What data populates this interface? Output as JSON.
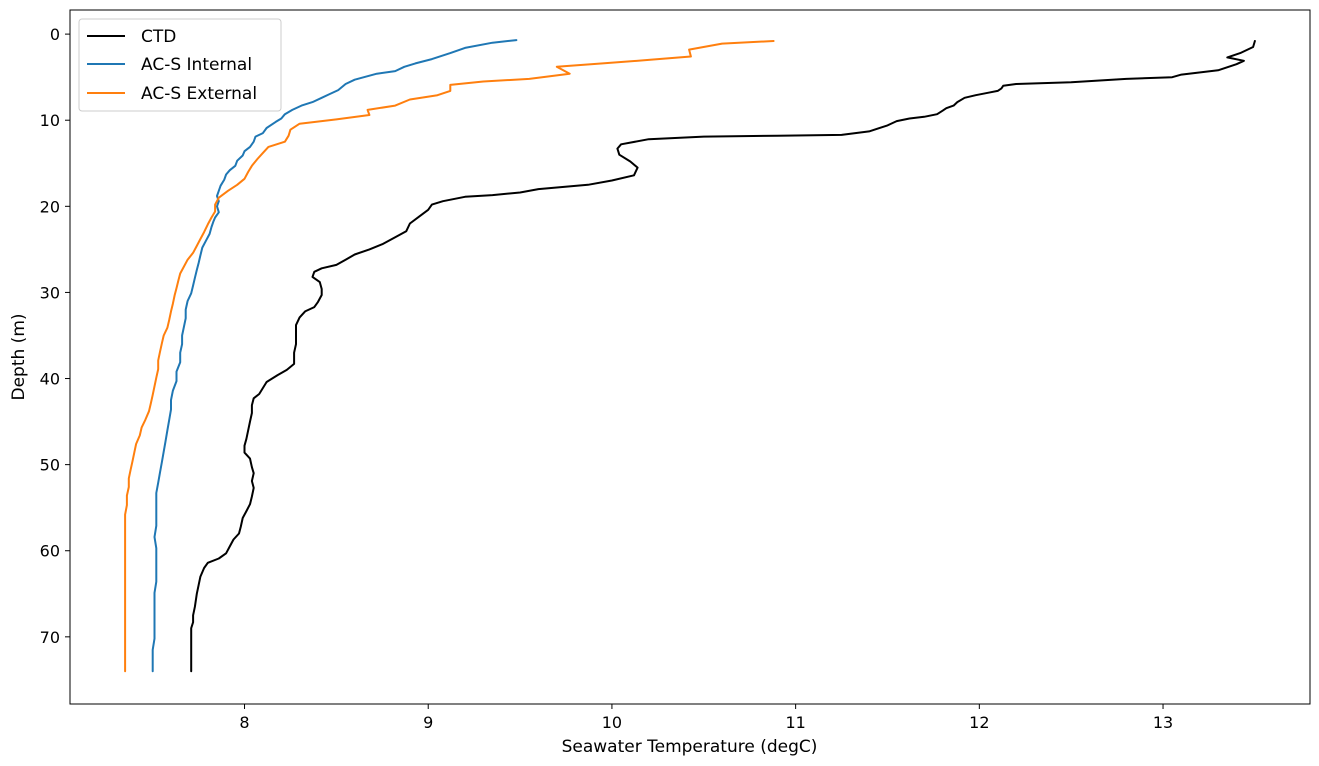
{
  "chart_data": {
    "type": "line",
    "xlabel": "Seawater Temperature (degC)",
    "ylabel": "Depth (m)",
    "xlim": [
      7.05,
      13.8
    ],
    "ylim": [
      77.8,
      -2.8
    ],
    "y_inverted": true,
    "xticks": [
      8,
      9,
      10,
      11,
      12,
      13
    ],
    "yticks": [
      0,
      10,
      20,
      30,
      40,
      50,
      60,
      70
    ],
    "grid": false,
    "legend_position": "top-left",
    "series": [
      {
        "name": "CTD",
        "color": "#000000",
        "points": [
          [
            13.5,
            0.8
          ],
          [
            13.49,
            1.5
          ],
          [
            13.42,
            2.2
          ],
          [
            13.35,
            2.7
          ],
          [
            13.44,
            3.1
          ],
          [
            13.4,
            3.5
          ],
          [
            13.3,
            4.2
          ],
          [
            13.1,
            4.7
          ],
          [
            13.05,
            5.0
          ],
          [
            12.8,
            5.2
          ],
          [
            12.5,
            5.6
          ],
          [
            12.2,
            5.8
          ],
          [
            12.13,
            6.0
          ],
          [
            12.12,
            6.3
          ],
          [
            12.1,
            6.6
          ],
          [
            12.05,
            6.8
          ],
          [
            11.98,
            7.1
          ],
          [
            11.92,
            7.4
          ],
          [
            11.88,
            7.9
          ],
          [
            11.86,
            8.3
          ],
          [
            11.82,
            8.6
          ],
          [
            11.8,
            8.9
          ],
          [
            11.77,
            9.3
          ],
          [
            11.7,
            9.6
          ],
          [
            11.62,
            9.8
          ],
          [
            11.55,
            10.1
          ],
          [
            11.5,
            10.6
          ],
          [
            11.4,
            11.3
          ],
          [
            11.25,
            11.7
          ],
          [
            10.9,
            11.8
          ],
          [
            10.5,
            11.9
          ],
          [
            10.2,
            12.2
          ],
          [
            10.05,
            12.8
          ],
          [
            10.03,
            13.3
          ],
          [
            10.04,
            14.0
          ],
          [
            10.1,
            14.8
          ],
          [
            10.14,
            15.5
          ],
          [
            10.12,
            16.4
          ],
          [
            10.0,
            17.0
          ],
          [
            9.87,
            17.5
          ],
          [
            9.6,
            18.0
          ],
          [
            9.5,
            18.4
          ],
          [
            9.35,
            18.7
          ],
          [
            9.2,
            18.9
          ],
          [
            9.08,
            19.4
          ],
          [
            9.02,
            19.8
          ],
          [
            9.0,
            20.4
          ],
          [
            8.95,
            21.2
          ],
          [
            8.9,
            22.0
          ],
          [
            8.88,
            22.9
          ],
          [
            8.82,
            23.6
          ],
          [
            8.75,
            24.4
          ],
          [
            8.68,
            25.0
          ],
          [
            8.6,
            25.6
          ],
          [
            8.55,
            26.2
          ],
          [
            8.5,
            26.8
          ],
          [
            8.42,
            27.2
          ],
          [
            8.38,
            27.6
          ],
          [
            8.37,
            28.2
          ],
          [
            8.41,
            28.8
          ],
          [
            8.42,
            29.6
          ],
          [
            8.42,
            30.3
          ],
          [
            8.4,
            31.1
          ],
          [
            8.38,
            31.7
          ],
          [
            8.33,
            32.2
          ],
          [
            8.3,
            32.9
          ],
          [
            8.28,
            33.8
          ],
          [
            8.28,
            35.0
          ],
          [
            8.28,
            36.0
          ],
          [
            8.27,
            37.0
          ],
          [
            8.27,
            38.3
          ],
          [
            8.23,
            39.0
          ],
          [
            8.18,
            39.6
          ],
          [
            8.12,
            40.4
          ],
          [
            8.1,
            41.1
          ],
          [
            8.08,
            41.8
          ],
          [
            8.05,
            42.3
          ],
          [
            8.04,
            43.1
          ],
          [
            8.04,
            44.0
          ],
          [
            8.03,
            45.0
          ],
          [
            8.02,
            46.0
          ],
          [
            8.01,
            47.0
          ],
          [
            8.0,
            47.8
          ],
          [
            8.0,
            48.6
          ],
          [
            8.03,
            49.3
          ],
          [
            8.04,
            50.3
          ],
          [
            8.05,
            51.0
          ],
          [
            8.04,
            51.9
          ],
          [
            8.05,
            52.7
          ],
          [
            8.04,
            53.7
          ],
          [
            8.03,
            54.6
          ],
          [
            8.01,
            55.4
          ],
          [
            7.99,
            56.2
          ],
          [
            7.98,
            57.2
          ],
          [
            7.97,
            58.0
          ],
          [
            7.94,
            58.7
          ],
          [
            7.92,
            59.5
          ],
          [
            7.9,
            60.3
          ],
          [
            7.86,
            60.9
          ],
          [
            7.8,
            61.4
          ],
          [
            7.78,
            62.0
          ],
          [
            7.76,
            63.0
          ],
          [
            7.75,
            64.0
          ],
          [
            7.74,
            65.0
          ],
          [
            7.73,
            66.5
          ],
          [
            7.72,
            67.5
          ],
          [
            7.72,
            68.3
          ],
          [
            7.71,
            69.0
          ],
          [
            7.71,
            70.0
          ],
          [
            7.71,
            72.0
          ],
          [
            7.71,
            74.0
          ]
        ]
      },
      {
        "name": "AC-S Internal",
        "color": "#1f77b4",
        "points": [
          [
            9.48,
            0.7
          ],
          [
            9.35,
            1.0
          ],
          [
            9.2,
            1.6
          ],
          [
            9.12,
            2.2
          ],
          [
            9.02,
            2.9
          ],
          [
            8.93,
            3.4
          ],
          [
            8.87,
            3.8
          ],
          [
            8.82,
            4.3
          ],
          [
            8.72,
            4.6
          ],
          [
            8.65,
            5.0
          ],
          [
            8.6,
            5.3
          ],
          [
            8.55,
            5.8
          ],
          [
            8.51,
            6.5
          ],
          [
            8.46,
            7.0
          ],
          [
            8.42,
            7.4
          ],
          [
            8.37,
            7.9
          ],
          [
            8.31,
            8.3
          ],
          [
            8.26,
            8.8
          ],
          [
            8.22,
            9.3
          ],
          [
            8.2,
            9.8
          ],
          [
            8.17,
            10.2
          ],
          [
            8.12,
            10.9
          ],
          [
            8.1,
            11.5
          ],
          [
            8.06,
            11.9
          ],
          [
            8.05,
            12.5
          ],
          [
            8.03,
            13.1
          ],
          [
            8.0,
            13.6
          ],
          [
            7.99,
            14.1
          ],
          [
            7.96,
            14.7
          ],
          [
            7.95,
            15.3
          ],
          [
            7.92,
            15.8
          ],
          [
            7.9,
            16.3
          ],
          [
            7.89,
            16.9
          ],
          [
            7.87,
            17.6
          ],
          [
            7.86,
            18.2
          ],
          [
            7.85,
            18.8
          ],
          [
            7.86,
            19.4
          ],
          [
            7.85,
            20.0
          ],
          [
            7.86,
            20.7
          ],
          [
            7.84,
            21.3
          ],
          [
            7.83,
            21.8
          ],
          [
            7.82,
            22.4
          ],
          [
            7.81,
            23.2
          ],
          [
            7.79,
            24.0
          ],
          [
            7.77,
            24.8
          ],
          [
            7.76,
            25.7
          ],
          [
            7.75,
            26.6
          ],
          [
            7.74,
            27.4
          ],
          [
            7.73,
            28.3
          ],
          [
            7.72,
            29.2
          ],
          [
            7.71,
            30.1
          ],
          [
            7.69,
            31.0
          ],
          [
            7.68,
            32.0
          ],
          [
            7.68,
            33.0
          ],
          [
            7.67,
            34.0
          ],
          [
            7.66,
            35.0
          ],
          [
            7.66,
            36.0
          ],
          [
            7.65,
            37.0
          ],
          [
            7.65,
            38.1
          ],
          [
            7.63,
            39.2
          ],
          [
            7.63,
            40.3
          ],
          [
            7.61,
            41.4
          ],
          [
            7.6,
            42.5
          ],
          [
            7.6,
            43.6
          ],
          [
            7.59,
            44.8
          ],
          [
            7.58,
            46.0
          ],
          [
            7.57,
            47.3
          ],
          [
            7.56,
            48.5
          ],
          [
            7.55,
            49.7
          ],
          [
            7.54,
            50.9
          ],
          [
            7.53,
            52.1
          ],
          [
            7.52,
            53.3
          ],
          [
            7.52,
            54.5
          ],
          [
            7.52,
            55.8
          ],
          [
            7.52,
            57.1
          ],
          [
            7.51,
            58.4
          ],
          [
            7.52,
            59.7
          ],
          [
            7.52,
            61.0
          ],
          [
            7.52,
            62.3
          ],
          [
            7.52,
            63.6
          ],
          [
            7.51,
            64.9
          ],
          [
            7.51,
            66.2
          ],
          [
            7.51,
            67.5
          ],
          [
            7.51,
            68.9
          ],
          [
            7.51,
            70.2
          ],
          [
            7.5,
            71.5
          ],
          [
            7.5,
            72.7
          ],
          [
            7.5,
            74.0
          ]
        ]
      },
      {
        "name": "AC-S External",
        "color": "#ff7f0e",
        "points": [
          [
            10.88,
            0.8
          ],
          [
            10.6,
            1.1
          ],
          [
            10.42,
            1.8
          ],
          [
            10.43,
            2.6
          ],
          [
            10.2,
            3.0
          ],
          [
            9.95,
            3.4
          ],
          [
            9.7,
            3.8
          ],
          [
            9.77,
            4.6
          ],
          [
            9.55,
            5.2
          ],
          [
            9.3,
            5.5
          ],
          [
            9.12,
            5.9
          ],
          [
            9.12,
            6.6
          ],
          [
            9.05,
            7.1
          ],
          [
            8.9,
            7.6
          ],
          [
            8.82,
            8.3
          ],
          [
            8.67,
            8.8
          ],
          [
            8.68,
            9.4
          ],
          [
            8.5,
            9.9
          ],
          [
            8.3,
            10.4
          ],
          [
            8.25,
            11.1
          ],
          [
            8.24,
            11.8
          ],
          [
            8.22,
            12.5
          ],
          [
            8.13,
            13.1
          ],
          [
            8.1,
            13.8
          ],
          [
            8.07,
            14.5
          ],
          [
            8.04,
            15.3
          ],
          [
            8.02,
            16.0
          ],
          [
            8.0,
            16.8
          ],
          [
            7.96,
            17.5
          ],
          [
            7.91,
            18.2
          ],
          [
            7.86,
            19.0
          ],
          [
            7.84,
            19.8
          ],
          [
            7.84,
            20.6
          ],
          [
            7.82,
            21.3
          ],
          [
            7.8,
            22.1
          ],
          [
            7.78,
            23.0
          ],
          [
            7.76,
            23.8
          ],
          [
            7.74,
            24.6
          ],
          [
            7.72,
            25.4
          ],
          [
            7.69,
            26.2
          ],
          [
            7.67,
            27.0
          ],
          [
            7.65,
            27.8
          ],
          [
            7.64,
            28.6
          ],
          [
            7.63,
            29.5
          ],
          [
            7.62,
            30.3
          ],
          [
            7.61,
            31.3
          ],
          [
            7.6,
            32.2
          ],
          [
            7.59,
            33.2
          ],
          [
            7.58,
            34.1
          ],
          [
            7.56,
            35.0
          ],
          [
            7.55,
            35.9
          ],
          [
            7.54,
            36.9
          ],
          [
            7.53,
            37.9
          ],
          [
            7.53,
            38.9
          ],
          [
            7.52,
            39.9
          ],
          [
            7.51,
            40.9
          ],
          [
            7.5,
            41.9
          ],
          [
            7.49,
            42.9
          ],
          [
            7.48,
            43.8
          ],
          [
            7.46,
            44.8
          ],
          [
            7.44,
            45.7
          ],
          [
            7.43,
            46.6
          ],
          [
            7.41,
            47.6
          ],
          [
            7.4,
            48.6
          ],
          [
            7.39,
            49.6
          ],
          [
            7.38,
            50.6
          ],
          [
            7.37,
            51.6
          ],
          [
            7.37,
            52.6
          ],
          [
            7.36,
            53.6
          ],
          [
            7.36,
            54.7
          ],
          [
            7.35,
            55.8
          ],
          [
            7.35,
            56.9
          ],
          [
            7.35,
            58.0
          ],
          [
            7.35,
            59.1
          ],
          [
            7.35,
            60.3
          ],
          [
            7.35,
            61.4
          ],
          [
            7.35,
            62.6
          ],
          [
            7.35,
            63.7
          ],
          [
            7.35,
            64.9
          ],
          [
            7.35,
            66.1
          ],
          [
            7.35,
            67.3
          ],
          [
            7.35,
            68.5
          ],
          [
            7.35,
            69.7
          ],
          [
            7.35,
            71.0
          ],
          [
            7.35,
            72.3
          ],
          [
            7.35,
            74.0
          ]
        ]
      }
    ]
  }
}
